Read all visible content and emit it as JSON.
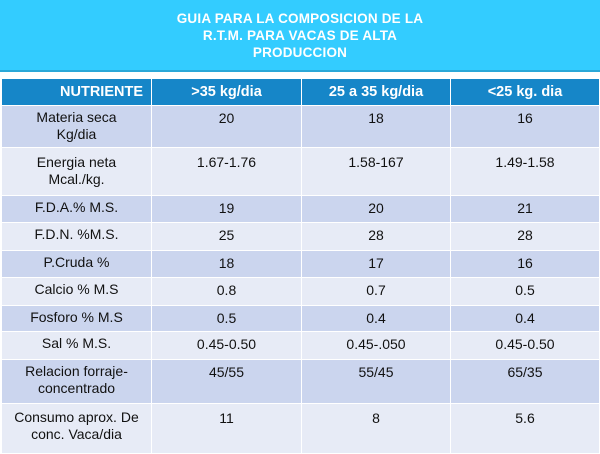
{
  "title": {
    "line1": "GUIA PARA LA COMPOSICION DE LA",
    "line2": "R.T.M. PARA VACAS DE ALTA",
    "line3": "PRODUCCION"
  },
  "colors": {
    "header_bg": "#33ccff",
    "table_head": "#1686c8",
    "row_dark": "#cbd5ee",
    "row_light": "#e7ebf6"
  },
  "table": {
    "headers": [
      "NUTRIENTE",
      ">35 kg/dia",
      "25 a 35 kg/dia",
      "<25 kg. dia"
    ],
    "rows": [
      {
        "label": [
          "Materia seca",
          "Kg/dia"
        ],
        "values": [
          "20",
          "18",
          "16"
        ]
      },
      {
        "label": [
          "Energia neta",
          "Mcal./kg."
        ],
        "values": [
          "1.67-1.76",
          "1.58-167",
          "1.49-1.58"
        ]
      },
      {
        "label": [
          "F.D.A.% M.S."
        ],
        "values": [
          "19",
          "20",
          "21"
        ]
      },
      {
        "label": [
          "F.D.N. %M.S."
        ],
        "values": [
          "25",
          "28",
          "28"
        ]
      },
      {
        "label": [
          "P.Cruda %"
        ],
        "values": [
          "18",
          "17",
          "16"
        ]
      },
      {
        "label": [
          "Calcio % M.S"
        ],
        "values": [
          "0.8",
          "0.7",
          "0.5"
        ]
      },
      {
        "label": [
          "Fosforo % M.S"
        ],
        "values": [
          "0.5",
          "0.4",
          "0.4"
        ]
      },
      {
        "label": [
          "Sal % M.S."
        ],
        "values": [
          "0.45-0.50",
          "0.45-.050",
          "0.45-0.50"
        ]
      },
      {
        "label": [
          "Relacion forraje-",
          "concentrado"
        ],
        "values": [
          "45/55",
          "55/45",
          "65/35"
        ]
      },
      {
        "label": [
          "Consumo aprox. De",
          "conc. Vaca/dia"
        ],
        "values": [
          "11",
          "8",
          "5.6"
        ]
      }
    ]
  }
}
